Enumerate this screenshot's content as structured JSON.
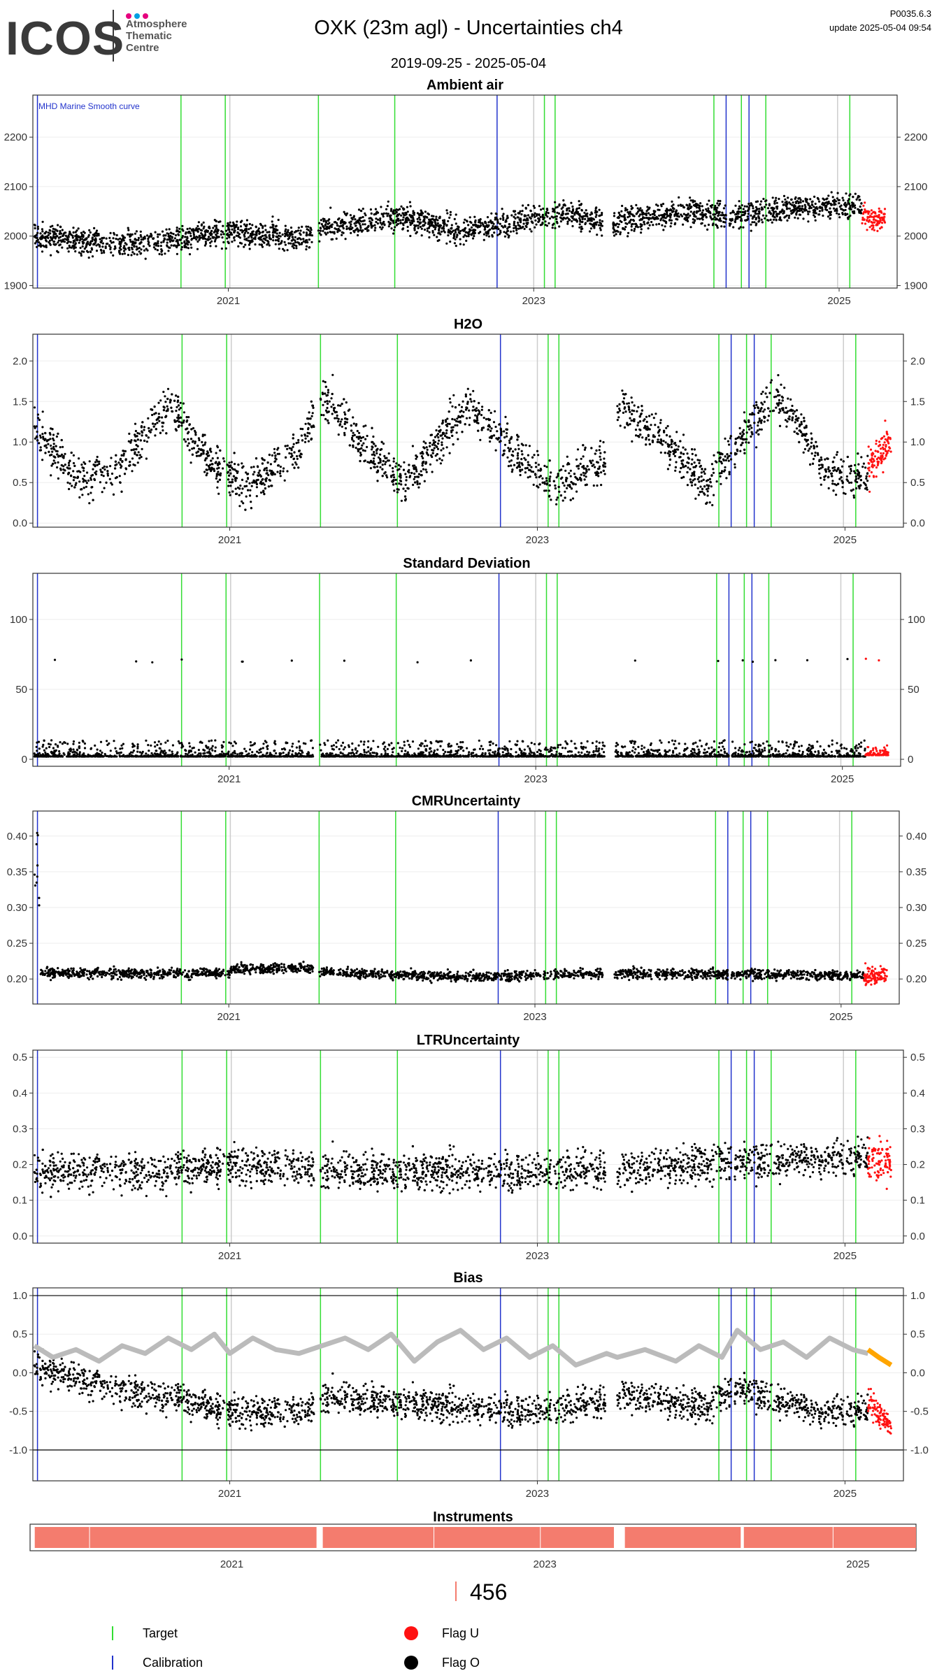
{
  "logo": {
    "wordmark": "ICOS",
    "subtitle_lines": [
      "Atmosphere",
      "Thematic",
      "Centre"
    ],
    "dot_colors": [
      "#e6007e",
      "#00a0e3",
      "#e6007e"
    ]
  },
  "header": {
    "title": "OXK  (23m agl) - Uncertainties ch4",
    "date_range": "2019-09-25 - 2025-05-04",
    "version": "P0035.6.3",
    "update": "update  2025-05-04 09:54"
  },
  "colors": {
    "target": "#33dd33",
    "calibration": "#2233cc",
    "flag_u": "#ff1111",
    "flag_o": "#000000",
    "smooth": "#bbbbbb",
    "smooth_recent": "#ffa500",
    "instrument": "#f47c6e",
    "grey_marker": "#cccccc"
  },
  "markers": {
    "target": [
      2020.69,
      2020.98,
      2021.59,
      2022.09,
      2023.07,
      2023.14,
      2024.18,
      2024.36,
      2024.52,
      2025.07
    ],
    "calibration": [
      2019.75,
      2022.76,
      2024.26,
      2024.41
    ],
    "grey": [
      2021.01,
      2023.0,
      2024.99
    ]
  },
  "x_ticks": [
    "2021",
    "2023",
    "2025"
  ],
  "chart_data": [
    {
      "type": "scatter",
      "title": "Ambient air",
      "annotation": "MHD Marine Smooth curve",
      "ylim": [
        1895,
        2285
      ],
      "yticks": [
        1900,
        2000,
        2100,
        2200
      ],
      "xlim": [
        2019.72,
        2025.38
      ],
      "grid": true,
      "data_gaps": [
        [
          2021.55,
          2021.59
        ],
        [
          2023.45,
          2023.52
        ],
        [
          2024.26,
          2024.28
        ]
      ],
      "series": [
        {
          "name": "Flag O",
          "baseline": [
            [
              2019.73,
              2000
            ],
            [
              2020.2,
              1985
            ],
            [
              2020.6,
              1990
            ],
            [
              2021.0,
              2010
            ],
            [
              2021.5,
              1995
            ],
            [
              2021.6,
              2015
            ],
            [
              2022.1,
              2040
            ],
            [
              2022.5,
              2010
            ],
            [
              2022.9,
              2030
            ],
            [
              2023.2,
              2045
            ],
            [
              2023.45,
              2030
            ],
            [
              2023.52,
              2030
            ],
            [
              2024.0,
              2050
            ],
            [
              2024.3,
              2040
            ],
            [
              2024.8,
              2060
            ],
            [
              2025.15,
              2060
            ]
          ],
          "spread": 45
        },
        {
          "name": "Flag U",
          "baseline": [
            [
              2025.15,
              2045
            ],
            [
              2025.3,
              2030
            ]
          ],
          "spread": 40
        }
      ]
    },
    {
      "type": "scatter",
      "title": "H2O",
      "ylim": [
        -0.05,
        2.33
      ],
      "yticks": [
        0.0,
        0.5,
        1.0,
        1.5,
        2.0
      ],
      "xlim": [
        2019.72,
        2025.38
      ],
      "grid": true,
      "data_gaps": [
        [
          2021.55,
          2021.59
        ],
        [
          2023.45,
          2023.52
        ],
        [
          2024.26,
          2024.28
        ]
      ],
      "series": [
        {
          "name": "Flag O",
          "baseline": [
            [
              2019.73,
              1.2
            ],
            [
              2020.0,
              0.55
            ],
            [
              2020.25,
              0.6
            ],
            [
              2020.6,
              1.5
            ],
            [
              2020.85,
              0.8
            ],
            [
              2021.1,
              0.45
            ],
            [
              2021.45,
              0.9
            ],
            [
              2021.6,
              1.6
            ],
            [
              2021.9,
              0.9
            ],
            [
              2022.15,
              0.5
            ],
            [
              2022.55,
              1.45
            ],
            [
              2022.85,
              0.9
            ],
            [
              2023.1,
              0.45
            ],
            [
              2023.45,
              0.8
            ],
            [
              2023.52,
              1.5
            ],
            [
              2023.9,
              0.9
            ],
            [
              2024.1,
              0.45
            ],
            [
              2024.55,
              1.6
            ],
            [
              2024.9,
              0.6
            ],
            [
              2025.15,
              0.55
            ]
          ],
          "spread": 0.45
        },
        {
          "name": "Flag U",
          "baseline": [
            [
              2025.15,
              0.65
            ],
            [
              2025.3,
              1.0
            ]
          ],
          "spread": 0.4
        }
      ]
    },
    {
      "type": "scatter",
      "title": "Standard Deviation",
      "ylim": [
        -5,
        133
      ],
      "yticks": [
        0,
        50,
        100
      ],
      "xlim": [
        2019.72,
        2025.38
      ],
      "grid": true,
      "data_gaps": [
        [
          2021.55,
          2021.59
        ],
        [
          2023.45,
          2023.52
        ],
        [
          2024.26,
          2024.28
        ]
      ],
      "series": [
        {
          "name": "Flag O",
          "baseline": [
            [
              2019.73,
              2
            ],
            [
              2025.15,
              2
            ]
          ],
          "spread": 12
        },
        {
          "name": "Flag U",
          "baseline": [
            [
              2025.15,
              3
            ],
            [
              2025.3,
              3
            ]
          ],
          "spread": 8
        }
      ]
    },
    {
      "type": "scatter",
      "title": "CMRUncertainty",
      "ylim": [
        0.165,
        0.435
      ],
      "yticks": [
        0.2,
        0.25,
        0.3,
        0.35,
        0.4
      ],
      "xlim": [
        2019.72,
        2025.38
      ],
      "grid": true,
      "data_gaps": [
        [
          2021.55,
          2021.59
        ],
        [
          2023.45,
          2023.52
        ],
        [
          2024.26,
          2024.28
        ]
      ],
      "series": [
        {
          "name": "Flag O",
          "baseline": [
            [
              2019.73,
              0.208
            ],
            [
              2021.0,
              0.208
            ],
            [
              2021.05,
              0.215
            ],
            [
              2021.55,
              0.215
            ],
            [
              2021.6,
              0.21
            ],
            [
              2022.5,
              0.203
            ],
            [
              2023.5,
              0.208
            ],
            [
              2025.15,
              0.205
            ]
          ],
          "spread": 0.012
        },
        {
          "name": "Flag U",
          "baseline": [
            [
              2025.15,
              0.205
            ],
            [
              2025.3,
              0.205
            ]
          ],
          "spread": 0.02
        }
      ]
    },
    {
      "type": "scatter",
      "title": "LTRUncertainty",
      "ylim": [
        -0.02,
        0.52
      ],
      "yticks": [
        0.0,
        0.1,
        0.2,
        0.3,
        0.4,
        0.5
      ],
      "xlim": [
        2019.72,
        2025.38
      ],
      "grid": true,
      "data_gaps": [
        [
          2021.55,
          2021.59
        ],
        [
          2023.45,
          2023.52
        ],
        [
          2024.26,
          2024.28
        ]
      ],
      "series": [
        {
          "name": "Flag O",
          "baseline": [
            [
              2019.73,
              0.18
            ],
            [
              2020.5,
              0.18
            ],
            [
              2021.0,
              0.2
            ],
            [
              2022.0,
              0.18
            ],
            [
              2023.0,
              0.18
            ],
            [
              2024.0,
              0.2
            ],
            [
              2025.15,
              0.22
            ]
          ],
          "spread": 0.09
        },
        {
          "name": "Flag U",
          "baseline": [
            [
              2025.15,
              0.22
            ],
            [
              2025.3,
              0.2
            ]
          ],
          "spread": 0.1
        }
      ]
    },
    {
      "type": "scatter",
      "title": "Bias",
      "ylim": [
        -1.4,
        1.1
      ],
      "yticks": [
        -1.0,
        -0.5,
        0.0,
        0.5,
        1.0
      ],
      "hlines": [
        -1.0,
        1.0
      ],
      "xlim": [
        2019.72,
        2025.38
      ],
      "grid": true,
      "data_gaps": [
        [
          2021.55,
          2021.59
        ],
        [
          2023.45,
          2023.52
        ],
        [
          2024.26,
          2024.28
        ]
      ],
      "series": [
        {
          "name": "Flag O",
          "baseline": [
            [
              2019.73,
              0.1
            ],
            [
              2020.2,
              -0.2
            ],
            [
              2020.6,
              -0.3
            ],
            [
              2021.0,
              -0.5
            ],
            [
              2021.5,
              -0.5
            ],
            [
              2021.6,
              -0.3
            ],
            [
              2022.5,
              -0.45
            ],
            [
              2023.0,
              -0.5
            ],
            [
              2023.45,
              -0.35
            ],
            [
              2023.52,
              -0.25
            ],
            [
              2024.1,
              -0.45
            ],
            [
              2024.3,
              -0.2
            ],
            [
              2024.8,
              -0.5
            ],
            [
              2025.15,
              -0.5
            ]
          ],
          "spread": 0.35
        },
        {
          "name": "Flag U",
          "baseline": [
            [
              2025.15,
              -0.35
            ],
            [
              2025.3,
              -0.7
            ]
          ],
          "spread": 0.3
        }
      ],
      "smooth_line": [
        [
          2019.73,
          0.35
        ],
        [
          2019.85,
          0.2
        ],
        [
          2020.0,
          0.3
        ],
        [
          2020.15,
          0.15
        ],
        [
          2020.3,
          0.35
        ],
        [
          2020.45,
          0.25
        ],
        [
          2020.6,
          0.45
        ],
        [
          2020.75,
          0.3
        ],
        [
          2020.9,
          0.5
        ],
        [
          2021.0,
          0.25
        ],
        [
          2021.15,
          0.45
        ],
        [
          2021.3,
          0.3
        ],
        [
          2021.45,
          0.25
        ],
        [
          2021.6,
          0.35
        ],
        [
          2021.75,
          0.45
        ],
        [
          2021.9,
          0.3
        ],
        [
          2022.05,
          0.5
        ],
        [
          2022.2,
          0.15
        ],
        [
          2022.35,
          0.4
        ],
        [
          2022.5,
          0.55
        ],
        [
          2022.65,
          0.3
        ],
        [
          2022.8,
          0.45
        ],
        [
          2022.95,
          0.2
        ],
        [
          2023.1,
          0.35
        ],
        [
          2023.25,
          0.1
        ],
        [
          2023.45,
          0.25
        ],
        [
          2023.52,
          0.2
        ],
        [
          2023.7,
          0.3
        ],
        [
          2023.9,
          0.15
        ],
        [
          2024.05,
          0.35
        ],
        [
          2024.2,
          0.2
        ],
        [
          2024.3,
          0.55
        ],
        [
          2024.45,
          0.3
        ],
        [
          2024.6,
          0.4
        ],
        [
          2024.75,
          0.2
        ],
        [
          2024.9,
          0.45
        ],
        [
          2025.05,
          0.3
        ],
        [
          2025.15,
          0.25
        ]
      ],
      "smooth_recent": [
        [
          2025.15,
          0.3
        ],
        [
          2025.22,
          0.2
        ],
        [
          2025.3,
          0.1
        ]
      ]
    },
    {
      "type": "bar",
      "title": "Instruments",
      "segments": [
        {
          "label": "456",
          "start": 2019.75,
          "end": 2021.55
        },
        {
          "label": "456",
          "start": 2021.59,
          "end": 2023.45
        },
        {
          "label": "456",
          "start": 2023.52,
          "end": 2024.26
        },
        {
          "label": "456",
          "start": 2024.28,
          "end": 2025.38
        }
      ]
    }
  ],
  "instrument_label": "456",
  "legend": {
    "target": "Target",
    "calibration": "Calibration",
    "flag_u": "Flag U",
    "flag_o": "Flag O"
  }
}
